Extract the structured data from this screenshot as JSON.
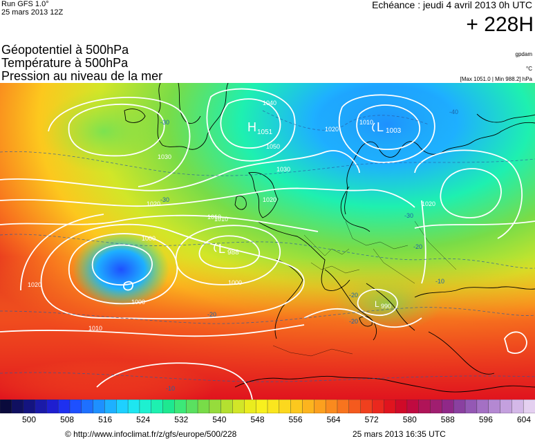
{
  "header": {
    "run_label": "Run GFS 1.0°",
    "run_date": "25 mars 2013 12Z",
    "echeance": "Echéance : jeudi 4 avril 2013 0h UTC",
    "lead": "+ 228H"
  },
  "layers": [
    "Géopotentiel à 500hPa",
    "Température à 500hPa",
    "Pression au niveau de la mer"
  ],
  "units": {
    "geopotential": "gpdam",
    "temperature": "°C",
    "pressure": "[Max 1051.0 | Min 988.2] hPa"
  },
  "pressure_centers": [
    {
      "type": "H",
      "value": "1051"
    },
    {
      "type": "L",
      "value": "1003"
    },
    {
      "type": "L",
      "value": "988"
    },
    {
      "type": "L",
      "value": "990"
    }
  ],
  "isobar_labels": [
    "1040",
    "1050",
    "1030",
    "1020",
    "1010",
    "1000",
    "1020",
    "1010",
    "1000",
    "1030",
    "1020",
    "1010",
    "1020",
    "1000",
    "1010",
    "1020"
  ],
  "temperature_labels": [
    "-30",
    "-30",
    "-20",
    "-20",
    "-20",
    "-10",
    "-40",
    "-10",
    "-20",
    "-30"
  ],
  "colorbar": {
    "ticks": [
      "500",
      "508",
      "516",
      "524",
      "532",
      "540",
      "548",
      "556",
      "564",
      "572",
      "580",
      "588",
      "596",
      "604"
    ],
    "colors": [
      "#0a0a3c",
      "#101060",
      "#141480",
      "#1a1aa8",
      "#1e1ed0",
      "#1e30f0",
      "#1e50ff",
      "#1e70ff",
      "#1e90ff",
      "#1eb0ff",
      "#1ed0ff",
      "#1ee6f0",
      "#1ef0d0",
      "#1ef0b0",
      "#1ee890",
      "#3ce878",
      "#5ae060",
      "#78dc48",
      "#96dc3c",
      "#b4e030",
      "#d2e628",
      "#eaec1e",
      "#f8f01e",
      "#fae61e",
      "#fcd81e",
      "#fcc81e",
      "#fcb41e",
      "#fca01e",
      "#fa8a1e",
      "#f8741e",
      "#f45a1e",
      "#f0401e",
      "#ea281e",
      "#e0141e",
      "#d00a28",
      "#c00a40",
      "#b01458",
      "#a01e70",
      "#902888",
      "#8a40a0",
      "#9458b4",
      "#a470c4",
      "#b488d2",
      "#c4a0de",
      "#d4b8e8",
      "#e4d0f0"
    ]
  },
  "footer": {
    "copyright": "© http://www.infoclimat.fr/z/gfs/europe/500/228",
    "issued": "25 mars 2013 16:35 UTC"
  }
}
